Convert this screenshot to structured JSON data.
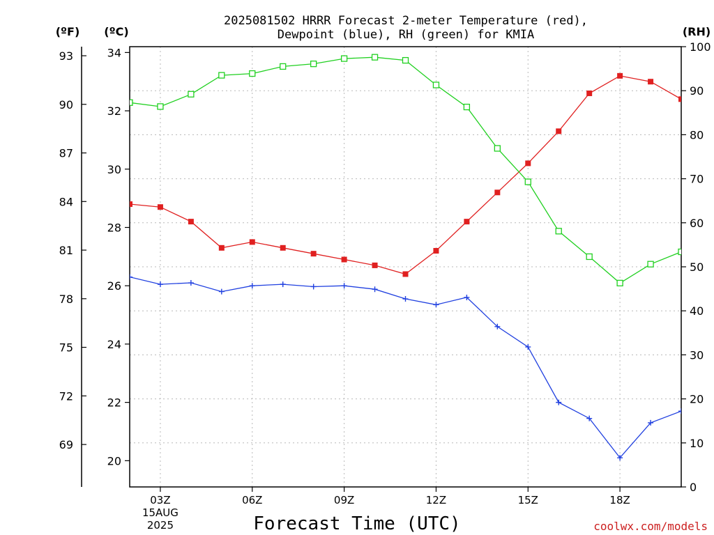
{
  "title_line1": "2025081502 HRRR Forecast 2-meter Temperature (red),",
  "title_line2": "Dewpoint (blue), RH (green) for KMIA",
  "unit_f": "(ºF)",
  "unit_c": "(ºC)",
  "unit_rh": "(RH)",
  "credit": "coolwx.com/models",
  "colors": {
    "temperature": "#e02020",
    "dewpoint": "#2040e0",
    "rh": "#20d020"
  },
  "chart_data": {
    "type": "line",
    "xlabel": "Forecast Time (UTC)",
    "x_hours": [
      2,
      3,
      4,
      5,
      6,
      7,
      8,
      9,
      10,
      11,
      12,
      13,
      14,
      15,
      16,
      17,
      18,
      19,
      20
    ],
    "xlim": [
      2,
      20
    ],
    "x_ticks": [
      {
        "hour": 3,
        "label": "03Z",
        "date_line1": "15AUG",
        "date_line2": "2025"
      },
      {
        "hour": 6,
        "label": "06Z"
      },
      {
        "hour": 9,
        "label": "09Z"
      },
      {
        "hour": 12,
        "label": "12Z"
      },
      {
        "hour": 15,
        "label": "15Z"
      },
      {
        "hour": 18,
        "label": "18Z"
      }
    ],
    "ylim_c": [
      19.1,
      34.2
    ],
    "y_ticks_c": [
      "20",
      "22",
      "24",
      "26",
      "28",
      "30",
      "32",
      "34"
    ],
    "y_ticks_f": [
      "69",
      "72",
      "75",
      "78",
      "81",
      "84",
      "87",
      "90",
      "93"
    ],
    "ylim_rh": [
      0,
      100
    ],
    "y_ticks_rh": [
      "0",
      "10",
      "20",
      "30",
      "40",
      "50",
      "60",
      "70",
      "80",
      "90",
      "100"
    ],
    "grid": true,
    "series": [
      {
        "key": "temperature",
        "axis": "c",
        "marker": "filled-square",
        "values": [
          28.8,
          28.7,
          28.2,
          27.3,
          27.5,
          27.3,
          27.1,
          26.9,
          26.7,
          26.4,
          27.2,
          28.2,
          29.2,
          30.2,
          31.3,
          32.6,
          33.2,
          33.0,
          32.4
        ]
      },
      {
        "key": "dewpoint",
        "axis": "c",
        "marker": "plus",
        "values": [
          26.3,
          26.05,
          26.1,
          25.8,
          26.0,
          26.05,
          25.97,
          26.0,
          25.88,
          25.55,
          25.35,
          25.6,
          24.6,
          23.9,
          22.0,
          21.45,
          20.1,
          21.3,
          21.7
        ]
      },
      {
        "key": "rh",
        "axis": "rh",
        "marker": "open-square",
        "values": [
          87.3,
          86.4,
          89.2,
          93.5,
          93.9,
          95.5,
          96.1,
          97.3,
          97.6,
          96.9,
          91.3,
          86.3,
          76.9,
          69.3,
          58.1,
          52.3,
          46.3,
          50.6,
          53.4
        ]
      }
    ]
  }
}
